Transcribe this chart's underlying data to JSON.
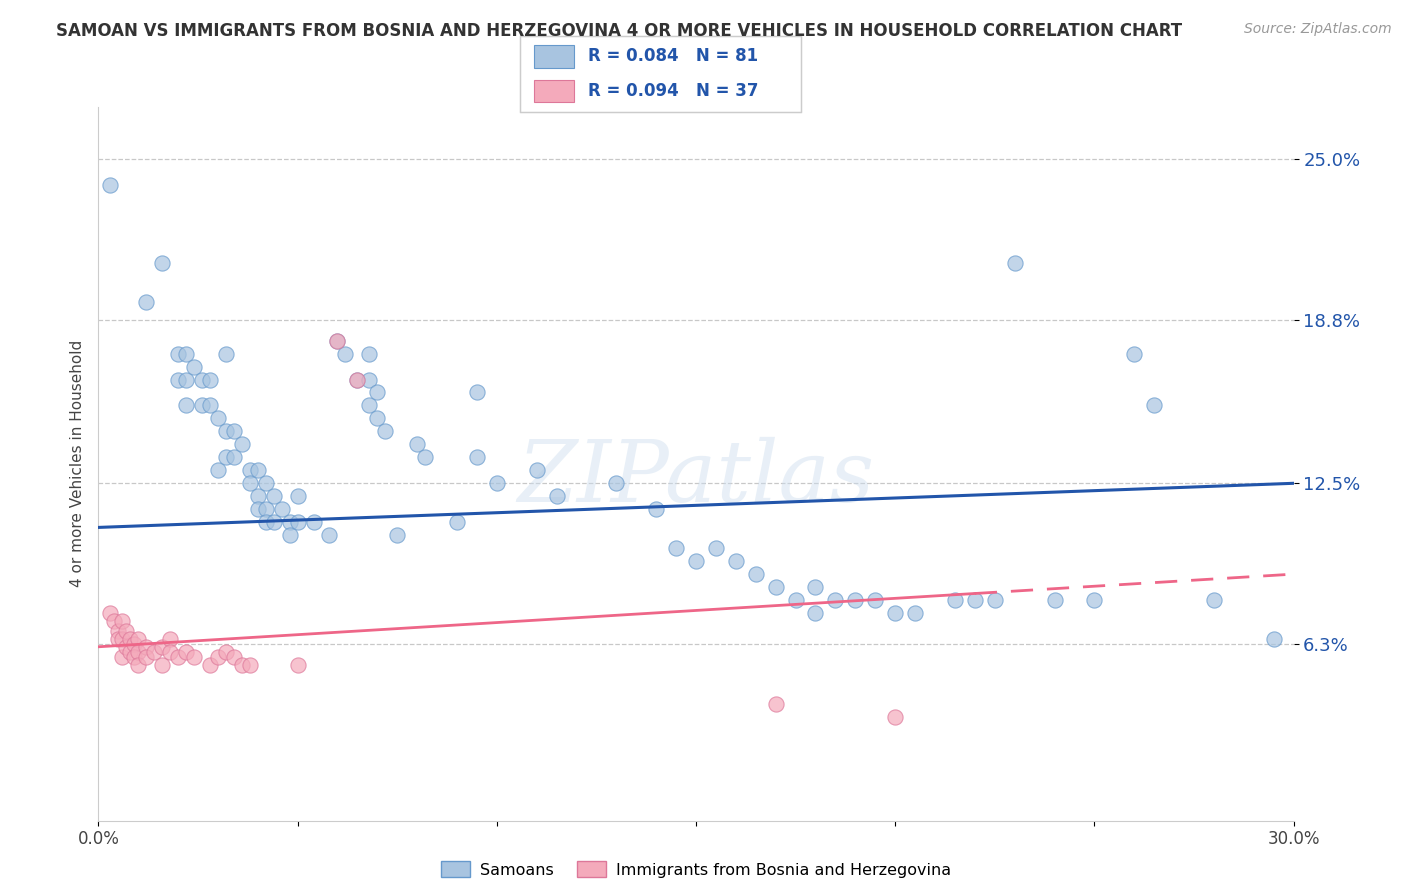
{
  "title": "SAMOAN VS IMMIGRANTS FROM BOSNIA AND HERZEGOVINA 4 OR MORE VEHICLES IN HOUSEHOLD CORRELATION CHART",
  "source": "Source: ZipAtlas.com",
  "ylabel": "4 or more Vehicles in Household",
  "xmin": 0.0,
  "xmax": 0.3,
  "ymin": -0.005,
  "ymax": 0.27,
  "yticks": [
    0.063,
    0.125,
    0.188,
    0.25
  ],
  "ytick_labels": [
    "6.3%",
    "12.5%",
    "18.8%",
    "25.0%"
  ],
  "xticks": [
    0.0,
    0.05,
    0.1,
    0.15,
    0.2,
    0.25,
    0.3
  ],
  "xtick_labels": [
    "0.0%",
    "",
    "",
    "",
    "",
    "",
    "30.0%"
  ],
  "legend_label1": "Samoans",
  "legend_label2": "Immigrants from Bosnia and Herzegovina",
  "blue_color": "#A8C4E0",
  "pink_color": "#F4AABB",
  "blue_edge_color": "#6699CC",
  "pink_edge_color": "#DD7799",
  "blue_line_color": "#2255AA",
  "pink_line_color": "#EE6688",
  "blue_scatter": [
    [
      0.003,
      0.24
    ],
    [
      0.012,
      0.195
    ],
    [
      0.016,
      0.21
    ],
    [
      0.02,
      0.175
    ],
    [
      0.02,
      0.165
    ],
    [
      0.022,
      0.175
    ],
    [
      0.022,
      0.165
    ],
    [
      0.022,
      0.155
    ],
    [
      0.024,
      0.17
    ],
    [
      0.026,
      0.165
    ],
    [
      0.026,
      0.155
    ],
    [
      0.028,
      0.165
    ],
    [
      0.028,
      0.155
    ],
    [
      0.03,
      0.15
    ],
    [
      0.03,
      0.13
    ],
    [
      0.032,
      0.175
    ],
    [
      0.032,
      0.145
    ],
    [
      0.032,
      0.135
    ],
    [
      0.034,
      0.145
    ],
    [
      0.034,
      0.135
    ],
    [
      0.036,
      0.14
    ],
    [
      0.038,
      0.13
    ],
    [
      0.038,
      0.125
    ],
    [
      0.04,
      0.13
    ],
    [
      0.04,
      0.12
    ],
    [
      0.04,
      0.115
    ],
    [
      0.042,
      0.125
    ],
    [
      0.042,
      0.115
    ],
    [
      0.042,
      0.11
    ],
    [
      0.044,
      0.12
    ],
    [
      0.044,
      0.11
    ],
    [
      0.046,
      0.115
    ],
    [
      0.048,
      0.11
    ],
    [
      0.048,
      0.105
    ],
    [
      0.05,
      0.12
    ],
    [
      0.05,
      0.11
    ],
    [
      0.054,
      0.11
    ],
    [
      0.058,
      0.105
    ],
    [
      0.06,
      0.18
    ],
    [
      0.062,
      0.175
    ],
    [
      0.065,
      0.165
    ],
    [
      0.068,
      0.175
    ],
    [
      0.068,
      0.165
    ],
    [
      0.068,
      0.155
    ],
    [
      0.07,
      0.16
    ],
    [
      0.07,
      0.15
    ],
    [
      0.072,
      0.145
    ],
    [
      0.075,
      0.105
    ],
    [
      0.08,
      0.14
    ],
    [
      0.082,
      0.135
    ],
    [
      0.09,
      0.11
    ],
    [
      0.095,
      0.16
    ],
    [
      0.095,
      0.135
    ],
    [
      0.1,
      0.125
    ],
    [
      0.11,
      0.13
    ],
    [
      0.115,
      0.12
    ],
    [
      0.13,
      0.125
    ],
    [
      0.14,
      0.115
    ],
    [
      0.145,
      0.1
    ],
    [
      0.15,
      0.095
    ],
    [
      0.155,
      0.1
    ],
    [
      0.16,
      0.095
    ],
    [
      0.165,
      0.09
    ],
    [
      0.17,
      0.085
    ],
    [
      0.175,
      0.08
    ],
    [
      0.18,
      0.085
    ],
    [
      0.18,
      0.075
    ],
    [
      0.185,
      0.08
    ],
    [
      0.19,
      0.08
    ],
    [
      0.195,
      0.08
    ],
    [
      0.2,
      0.075
    ],
    [
      0.205,
      0.075
    ],
    [
      0.215,
      0.08
    ],
    [
      0.22,
      0.08
    ],
    [
      0.225,
      0.08
    ],
    [
      0.23,
      0.21
    ],
    [
      0.24,
      0.08
    ],
    [
      0.25,
      0.08
    ],
    [
      0.26,
      0.175
    ],
    [
      0.265,
      0.155
    ],
    [
      0.28,
      0.08
    ],
    [
      0.295,
      0.065
    ]
  ],
  "pink_scatter": [
    [
      0.003,
      0.075
    ],
    [
      0.004,
      0.072
    ],
    [
      0.005,
      0.068
    ],
    [
      0.005,
      0.065
    ],
    [
      0.006,
      0.072
    ],
    [
      0.006,
      0.065
    ],
    [
      0.006,
      0.058
    ],
    [
      0.007,
      0.068
    ],
    [
      0.007,
      0.062
    ],
    [
      0.008,
      0.065
    ],
    [
      0.008,
      0.06
    ],
    [
      0.009,
      0.063
    ],
    [
      0.009,
      0.058
    ],
    [
      0.01,
      0.065
    ],
    [
      0.01,
      0.06
    ],
    [
      0.01,
      0.055
    ],
    [
      0.012,
      0.062
    ],
    [
      0.012,
      0.058
    ],
    [
      0.014,
      0.06
    ],
    [
      0.016,
      0.062
    ],
    [
      0.016,
      0.055
    ],
    [
      0.018,
      0.065
    ],
    [
      0.018,
      0.06
    ],
    [
      0.02,
      0.058
    ],
    [
      0.022,
      0.06
    ],
    [
      0.024,
      0.058
    ],
    [
      0.028,
      0.055
    ],
    [
      0.03,
      0.058
    ],
    [
      0.032,
      0.06
    ],
    [
      0.034,
      0.058
    ],
    [
      0.036,
      0.055
    ],
    [
      0.038,
      0.055
    ],
    [
      0.05,
      0.055
    ],
    [
      0.06,
      0.18
    ],
    [
      0.065,
      0.165
    ],
    [
      0.17,
      0.04
    ],
    [
      0.2,
      0.035
    ]
  ],
  "background_color": "#FFFFFF",
  "grid_color": "#CCCCCC",
  "watermark": "ZIPatlas"
}
